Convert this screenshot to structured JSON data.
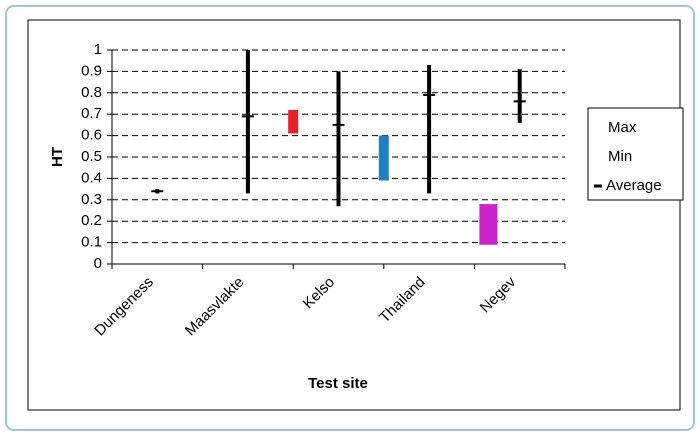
{
  "chart_data": {
    "type": "range",
    "x_label": "Test site",
    "y_label": "HT",
    "categories": [
      "Dungeness",
      "Maasvlakte",
      "Kelso",
      "Thailand",
      "Negev"
    ],
    "series": [
      {
        "name": "Max",
        "values": [
          0.35,
          1.0,
          0.9,
          0.93,
          0.91
        ]
      },
      {
        "name": "Min",
        "values": [
          0.33,
          0.33,
          0.27,
          0.33,
          0.66
        ]
      },
      {
        "name": "Average",
        "values": [
          0.34,
          0.69,
          0.65,
          0.79,
          0.76
        ]
      }
    ],
    "line_color": "#000000",
    "bands": {
      "high": [
        null,
        null,
        0.72,
        0.6,
        0.28
      ],
      "low": [
        null,
        null,
        0.61,
        0.39,
        0.09
      ],
      "colors": [
        null,
        null,
        "#e8202a",
        "#1f7fc1",
        "#cc22cc"
      ]
    },
    "ylim": [
      0,
      1
    ],
    "yticks": [
      0,
      0.1,
      0.2,
      0.3,
      0.4,
      0.5,
      0.6,
      0.7,
      0.8,
      0.9,
      1
    ],
    "grid": true,
    "legend": "right"
  }
}
